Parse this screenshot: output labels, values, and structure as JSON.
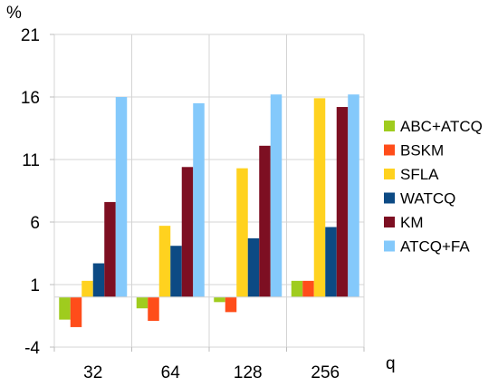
{
  "chart_data": {
    "type": "bar",
    "title": "",
    "ylabel": "%",
    "xlabel": "q",
    "categories": [
      "32",
      "64",
      "128",
      "256"
    ],
    "ylim": [
      -4,
      21
    ],
    "yticks": [
      -4,
      1,
      6,
      11,
      16,
      21
    ],
    "grid": true,
    "legend_position": "right",
    "series": [
      {
        "name": "ABC+ATCQ",
        "color": "#9fcc1e",
        "values": [
          -1.8,
          -0.9,
          -0.4,
          1.3
        ]
      },
      {
        "name": "BSKM",
        "color": "#ff4d1a",
        "values": [
          -2.4,
          -1.9,
          -1.2,
          1.3
        ]
      },
      {
        "name": "SFLA",
        "color": "#ffd21f",
        "values": [
          1.3,
          5.7,
          10.3,
          15.9
        ]
      },
      {
        "name": "WATCQ",
        "color": "#0c4a84",
        "values": [
          2.7,
          4.1,
          4.7,
          5.6
        ]
      },
      {
        "name": "KM",
        "color": "#7d0f22",
        "values": [
          7.6,
          10.4,
          12.1,
          15.2
        ]
      },
      {
        "name": "ATCQ+FA",
        "color": "#84c9fb",
        "values": [
          16.0,
          15.5,
          16.2,
          16.2
        ]
      }
    ]
  }
}
